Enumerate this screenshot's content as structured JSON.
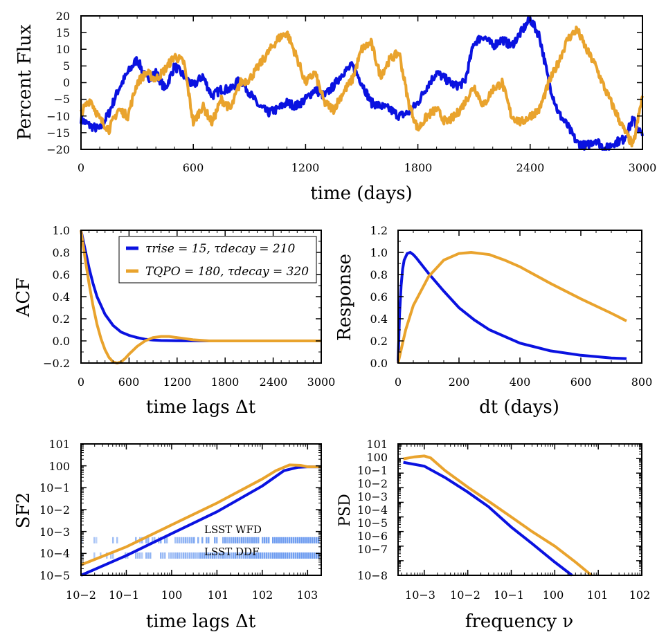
{
  "colors": {
    "blue": "#0a12e0",
    "orange": "#e9a32d",
    "lsst": "#6f9df0"
  },
  "chart_data": [
    {
      "id": "lightcurve",
      "type": "line",
      "xlabel": "time (days)",
      "ylabel": "Percent Flux",
      "xlim": [
        0,
        3000
      ],
      "ylim": [
        -20,
        20
      ],
      "xticks": [
        "0",
        "600",
        "1200",
        "1800",
        "2400",
        "3000"
      ],
      "yticks": [
        "20",
        "15",
        "10",
        "5",
        "0",
        "−5",
        "−10",
        "−15",
        "−20"
      ],
      "series": [
        {
          "name": "blue",
          "x": [
            0,
            50,
            100,
            150,
            200,
            250,
            300,
            350,
            400,
            450,
            500,
            550,
            600,
            650,
            700,
            750,
            800,
            850,
            900,
            950,
            1000,
            1050,
            1100,
            1150,
            1200,
            1250,
            1300,
            1350,
            1400,
            1450,
            1500,
            1550,
            1600,
            1650,
            1700,
            1750,
            1800,
            1850,
            1900,
            1950,
            2000,
            2050,
            2100,
            2150,
            2200,
            2250,
            2300,
            2350,
            2400,
            2450,
            2500,
            2550,
            2600,
            2650,
            2700,
            2750,
            2800,
            2850,
            2900,
            2950,
            3000
          ],
          "values": [
            -11,
            -13,
            -14,
            -9,
            -2,
            3,
            7,
            1,
            3,
            -2,
            5,
            2,
            -1,
            2,
            -4,
            -2,
            -2,
            1,
            -3,
            -7,
            -9,
            -8,
            -6,
            -7,
            -5,
            -2,
            -4,
            -1,
            3,
            5,
            0,
            -6,
            -7,
            -8,
            -10,
            -9,
            -6,
            -1,
            3,
            1,
            -1,
            0,
            12,
            14,
            11,
            13,
            11,
            15,
            19,
            14,
            0,
            -9,
            -13,
            -18,
            -19,
            -17,
            -20,
            -18,
            -17,
            -11,
            -16
          ]
        },
        {
          "name": "orange",
          "x": [
            0,
            50,
            100,
            150,
            200,
            250,
            300,
            350,
            400,
            450,
            500,
            550,
            600,
            650,
            700,
            750,
            800,
            850,
            900,
            950,
            1000,
            1050,
            1100,
            1150,
            1200,
            1250,
            1300,
            1350,
            1400,
            1450,
            1500,
            1550,
            1600,
            1650,
            1700,
            1750,
            1800,
            1850,
            1900,
            1950,
            2000,
            2050,
            2100,
            2150,
            2200,
            2250,
            2300,
            2350,
            2400,
            2450,
            2500,
            2550,
            2600,
            2650,
            2700,
            2750,
            2800,
            2850,
            2900,
            2950,
            3000
          ],
          "values": [
            -9,
            -5,
            -11,
            -14,
            -8,
            -10,
            0,
            3,
            1,
            4,
            8,
            6,
            -12,
            -7,
            -12,
            -5,
            -8,
            0,
            1,
            5,
            9,
            13,
            15,
            8,
            0,
            3,
            -6,
            -8,
            -3,
            1,
            10,
            12,
            2,
            7,
            9,
            -6,
            -14,
            -10,
            -8,
            -12,
            -10,
            -6,
            -1,
            -7,
            -2,
            0,
            -10,
            -12,
            -10,
            -8,
            0,
            6,
            13,
            16,
            10,
            5,
            -2,
            -8,
            -14,
            -19,
            -4
          ]
        }
      ]
    },
    {
      "id": "acf",
      "type": "line",
      "xlabel": "time lags Δt",
      "ylabel": "ACF",
      "xlim": [
        0,
        3000
      ],
      "ylim": [
        -0.2,
        1.0
      ],
      "xticks": [
        "0",
        "600",
        "1200",
        "1800",
        "2400",
        "3000"
      ],
      "yticks": [
        "1.0",
        "0.8",
        "0.6",
        "0.4",
        "0.2",
        "0.0",
        "−0.2"
      ],
      "legend": [
        {
          "label": "τrise = 15, τdecay = 210",
          "color": "blue"
        },
        {
          "label": "TQPO = 180, τdecay = 320",
          "color": "orange"
        }
      ],
      "series": [
        {
          "name": "blue",
          "x": [
            0,
            50,
            100,
            150,
            200,
            300,
            400,
            500,
            600,
            700,
            800,
            900,
            1000,
            1200,
            1600,
            2000,
            3000
          ],
          "values": [
            1.0,
            0.83,
            0.66,
            0.52,
            0.4,
            0.24,
            0.14,
            0.08,
            0.05,
            0.03,
            0.015,
            0.008,
            0.004,
            0.001,
            0.0,
            0.0,
            0.0
          ]
        },
        {
          "name": "orange",
          "x": [
            0,
            50,
            100,
            150,
            200,
            250,
            300,
            350,
            400,
            450,
            500,
            550,
            600,
            700,
            800,
            900,
            1000,
            1100,
            1200,
            1400,
            1600,
            1800,
            2000,
            3000
          ],
          "values": [
            1.0,
            0.75,
            0.52,
            0.32,
            0.15,
            0.02,
            -0.08,
            -0.15,
            -0.19,
            -0.2,
            -0.19,
            -0.16,
            -0.12,
            -0.05,
            0.0,
            0.03,
            0.04,
            0.04,
            0.03,
            0.01,
            0.0,
            0.0,
            0.0,
            0.0
          ]
        }
      ]
    },
    {
      "id": "response",
      "type": "line",
      "xlabel": "dt (days)",
      "ylabel": "Response",
      "xlim": [
        0,
        800
      ],
      "ylim": [
        0.0,
        1.2
      ],
      "xticks": [
        "0",
        "200",
        "400",
        "600",
        "800"
      ],
      "yticks": [
        "1.2",
        "1.0",
        "0.8",
        "0.6",
        "0.4",
        "0.2",
        "0.0"
      ],
      "series": [
        {
          "name": "blue",
          "x": [
            0,
            5,
            10,
            15,
            20,
            30,
            40,
            50,
            60,
            80,
            100,
            150,
            200,
            250,
            300,
            400,
            500,
            600,
            700,
            750
          ],
          "values": [
            0.0,
            0.45,
            0.7,
            0.85,
            0.93,
            0.99,
            1.0,
            0.98,
            0.95,
            0.88,
            0.81,
            0.65,
            0.5,
            0.39,
            0.3,
            0.18,
            0.11,
            0.07,
            0.045,
            0.04
          ]
        },
        {
          "name": "orange",
          "x": [
            0,
            25,
            50,
            100,
            150,
            200,
            240,
            300,
            350,
            400,
            500,
            600,
            700,
            750
          ],
          "values": [
            0.0,
            0.3,
            0.52,
            0.78,
            0.93,
            0.99,
            1.0,
            0.98,
            0.93,
            0.87,
            0.72,
            0.58,
            0.45,
            0.38
          ]
        }
      ]
    },
    {
      "id": "sf2",
      "type": "line",
      "xscale": "log",
      "yscale": "log",
      "xlabel": "time lags Δt",
      "ylabel": "SF2",
      "xlim": [
        0.01,
        2000
      ],
      "ylim": [
        1e-05,
        10
      ],
      "xticks": [
        "10−2",
        "10−1",
        "100",
        "101",
        "102",
        "103"
      ],
      "yticks": [
        "101",
        "100",
        "10−1",
        "10−2",
        "10−3",
        "10−4",
        "10−5"
      ],
      "annotations": [
        "LSST WFD",
        "LSST DDF"
      ],
      "series": [
        {
          "name": "blue",
          "x": [
            0.01,
            0.1,
            1,
            10,
            100,
            300,
            600,
            1000,
            2000
          ],
          "values": [
            8e-06,
            8e-05,
            0.0008,
            0.008,
            0.12,
            0.6,
            0.85,
            0.9,
            0.9
          ]
        },
        {
          "name": "orange",
          "x": [
            0.01,
            0.1,
            1,
            10,
            100,
            200,
            400,
            700,
            1000,
            2000
          ],
          "values": [
            3e-05,
            0.0002,
            0.002,
            0.02,
            0.25,
            0.6,
            1.1,
            1.05,
            0.9,
            0.9
          ]
        }
      ]
    },
    {
      "id": "psd",
      "type": "line",
      "xscale": "log",
      "yscale": "log",
      "xlabel": "frequency ν",
      "ylabel": "PSD",
      "xlim": [
        0.00025,
        100
      ],
      "ylim": [
        1e-08,
        10
      ],
      "xticks": [
        "10−3",
        "10−2",
        "10−1",
        "100",
        "101",
        "102"
      ],
      "yticks": [
        "101",
        "100",
        "10−1",
        "10−2",
        "10−3",
        "10−4",
        "10−5",
        "10−6",
        "10−7",
        "10−8"
      ],
      "series": [
        {
          "name": "blue",
          "x": [
            0.00033,
            0.001,
            0.003,
            0.01,
            0.03,
            0.1,
            0.3,
            1,
            2.5
          ],
          "values": [
            0.55,
            0.3,
            0.05,
            0.005,
            0.0005,
            2e-05,
            1.5e-06,
            8e-08,
            1e-08
          ]
        },
        {
          "name": "orange",
          "x": [
            0.00033,
            0.0006,
            0.001,
            0.0014,
            0.003,
            0.01,
            0.03,
            0.1,
            0.3,
            1,
            3,
            7
          ],
          "values": [
            0.95,
            1.3,
            1.5,
            1.1,
            0.15,
            0.011,
            0.0012,
            0.0001,
            1e-05,
            1e-06,
            8e-08,
            1e-08
          ]
        }
      ]
    }
  ]
}
